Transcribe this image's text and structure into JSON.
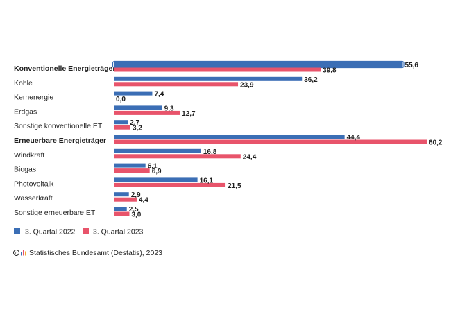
{
  "chart_data": {
    "type": "bar",
    "orientation": "horizontal",
    "categories": [
      "Konventionelle Energieträger",
      "Kohle",
      "Kernenergie",
      "Erdgas",
      "Sonstige konventionelle ET",
      "Erneuerbare Energieträger",
      "Windkraft",
      "Biogas",
      "Photovoltaik",
      "Wasserkraft",
      "Sonstige erneuerbare ET"
    ],
    "bold_categories": [
      "Konventionelle Energieträger",
      "Erneuerbare Energieträger"
    ],
    "highlighted_category": "Konventionelle Energieträger",
    "series": [
      {
        "name": "3. Quartal 2022",
        "color": "#3b6eb5",
        "values": [
          55.6,
          36.2,
          7.4,
          9.3,
          2.7,
          44.4,
          16.8,
          6.1,
          16.1,
          2.9,
          2.5
        ],
        "labels": [
          "55,6",
          "36,2",
          "7,4",
          "9,3",
          "2,7",
          "44,4",
          "16,8",
          "6,1",
          "16,1",
          "2,9",
          "2,5"
        ]
      },
      {
        "name": "3. Quartal 2023",
        "color": "#e8546b",
        "values": [
          39.8,
          23.9,
          0.0,
          12.7,
          3.2,
          60.2,
          24.4,
          6.9,
          21.5,
          4.4,
          3.0
        ],
        "labels": [
          "39,8",
          "23,9",
          "0,0",
          "12,7",
          "3,2",
          "60,2",
          "24,4",
          "6,9",
          "21,5",
          "4,4",
          "3,0"
        ]
      }
    ],
    "xlim": [
      0,
      60.2
    ],
    "grid": false,
    "legend_position": "bottom-left"
  },
  "source": "Statistisches Bundesamt (Destatis), 2023",
  "logo_icon": "destatis-logo-icon"
}
